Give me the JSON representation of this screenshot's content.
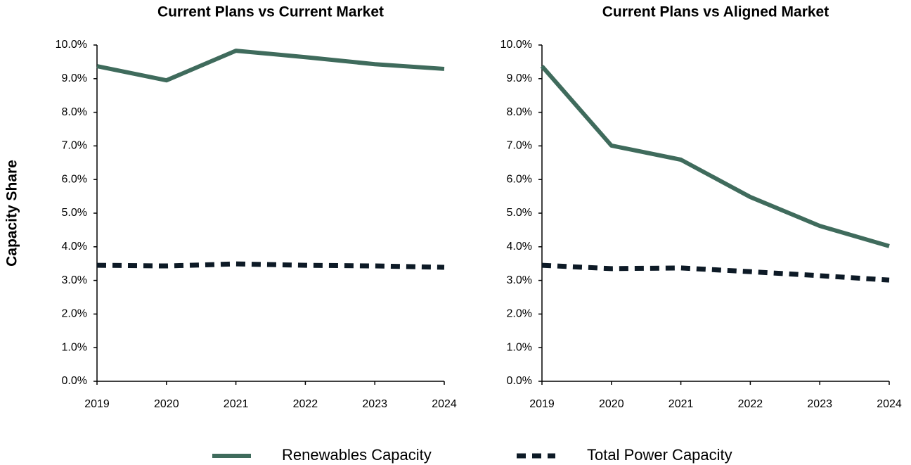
{
  "chart_data": [
    {
      "type": "line",
      "title": "Current Plans vs Current Market",
      "ylabel": "Capacity Share",
      "categories": [
        "2019",
        "2020",
        "2021",
        "2022",
        "2023",
        "2024"
      ],
      "series": [
        {
          "name": "Renewables Capacity",
          "color": "#3f6b5c",
          "line_style": "solid",
          "values": [
            9.37,
            8.95,
            9.83,
            9.64,
            9.43,
            9.29
          ]
        },
        {
          "name": "Total Power Capacity",
          "color": "#0d1a26",
          "line_style": "dashed",
          "values": [
            3.45,
            3.43,
            3.49,
            3.45,
            3.43,
            3.39
          ]
        }
      ],
      "ylim": [
        0,
        10
      ],
      "yticks": [
        {
          "value": 0,
          "label": "0.0%"
        },
        {
          "value": 1,
          "label": "1.0%"
        },
        {
          "value": 2,
          "label": "2.0%"
        },
        {
          "value": 3,
          "label": "3.0%"
        },
        {
          "value": 4,
          "label": "4.0%"
        },
        {
          "value": 5,
          "label": "5.0%"
        },
        {
          "value": 6,
          "label": "6.0%"
        },
        {
          "value": 7,
          "label": "7.0%"
        },
        {
          "value": 8,
          "label": "8.0%"
        },
        {
          "value": 9,
          "label": "9.0%"
        },
        {
          "value": 10,
          "label": "10.0%"
        }
      ]
    },
    {
      "type": "line",
      "title": "Current Plans vs Aligned Market",
      "categories": [
        "2019",
        "2020",
        "2021",
        "2022",
        "2023",
        "2024"
      ],
      "series": [
        {
          "color": "#3f6b5c",
          "line_style": "solid",
          "values": [
            9.37,
            7.01,
            6.59,
            5.48,
            4.62,
            4.02
          ]
        },
        {
          "color": "#0d1a26",
          "line_style": "dashed",
          "values": [
            3.45,
            3.35,
            3.37,
            3.26,
            3.14,
            3.01
          ]
        }
      ],
      "ylim": [
        0,
        10
      ],
      "yticks": [
        {
          "value": 0,
          "label": "0.0%"
        },
        {
          "value": 1,
          "label": "1.0%"
        },
        {
          "value": 2,
          "label": "2.0%"
        },
        {
          "value": 3,
          "label": "3.0%"
        },
        {
          "value": 4,
          "label": "4.0%"
        },
        {
          "value": 5,
          "label": "5.0%"
        },
        {
          "value": 6,
          "label": "6.0%"
        },
        {
          "value": 7,
          "label": "7.0%"
        },
        {
          "value": 8,
          "label": "8.0%"
        },
        {
          "value": 9,
          "label": "9.0%"
        },
        {
          "value": 10,
          "label": "10.0%"
        }
      ]
    }
  ]
}
